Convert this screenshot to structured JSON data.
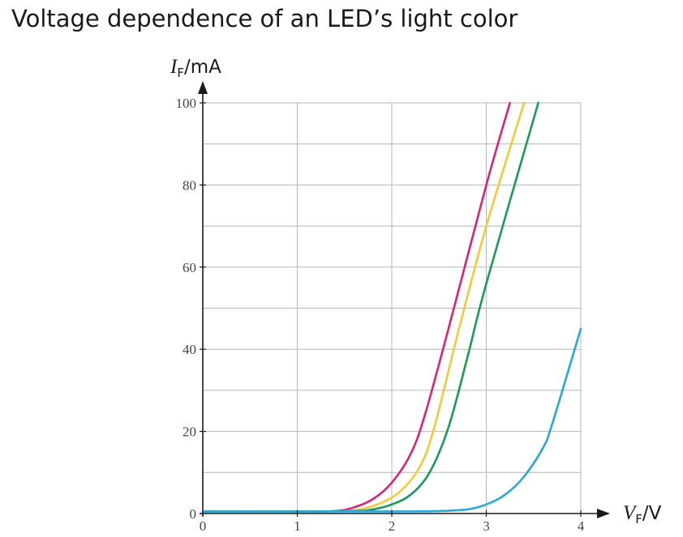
{
  "title": "Voltage dependence of an LED’s light color",
  "chart_data": {
    "type": "line",
    "title": "Voltage dependence of an LED’s light color",
    "xlabel": {
      "var": "V",
      "sub": "F",
      "unit": "/V"
    },
    "ylabel": {
      "var": "I",
      "sub": "F",
      "unit": "/mA"
    },
    "xlim": [
      0,
      4
    ],
    "ylim": [
      0,
      100
    ],
    "x_ticks": [
      0,
      1,
      2,
      3,
      4
    ],
    "y_ticks": [
      0,
      20,
      40,
      60,
      80,
      100
    ],
    "y_tick_labels": [
      "0",
      "20",
      "40",
      "60",
      "80",
      "100"
    ],
    "x_tick_labels": [
      "0",
      "1",
      "2",
      "3",
      "4"
    ],
    "grid": true,
    "series": [
      {
        "color": "#d6247a",
        "x": [
          0,
          1.0,
          1.4,
          1.6,
          1.8,
          2.0,
          2.2,
          2.35,
          2.6,
          3.0,
          3.25
        ],
        "y": [
          0.5,
          0.5,
          0.6,
          1.5,
          3.5,
          7.5,
          14.5,
          24,
          45,
          80,
          100
        ]
      },
      {
        "color": "#f2c93a",
        "x": [
          0,
          1.0,
          1.5,
          1.7,
          1.9,
          2.1,
          2.3,
          2.45,
          2.7,
          3.0,
          3.4
        ],
        "y": [
          0.5,
          0.5,
          0.6,
          1.2,
          2.7,
          5.6,
          11.5,
          21,
          44,
          70,
          100
        ]
      },
      {
        "color": "#1b9a55",
        "x": [
          0,
          1.0,
          1.6,
          1.8,
          2.0,
          2.2,
          2.4,
          2.6,
          2.8,
          3.0,
          3.55
        ],
        "y": [
          0.5,
          0.5,
          0.6,
          1.0,
          2.2,
          4.6,
          10,
          21,
          38,
          56,
          100
        ]
      },
      {
        "color": "#29a8d8",
        "x": [
          0,
          1.0,
          2.0,
          2.5,
          2.8,
          3.0,
          3.2,
          3.4,
          3.6,
          3.7,
          4.0
        ],
        "y": [
          0.5,
          0.5,
          0.5,
          0.6,
          1.0,
          2.2,
          4.6,
          9,
          16,
          22,
          45
        ]
      }
    ]
  }
}
